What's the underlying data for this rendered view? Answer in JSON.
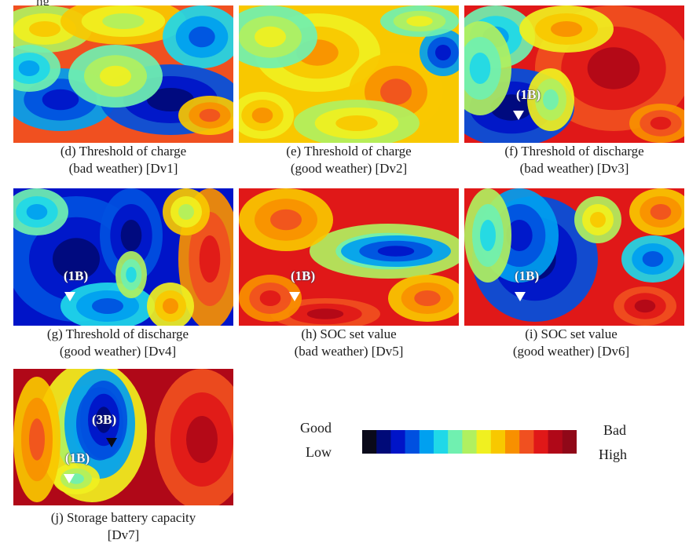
{
  "top_fragment": "ng",
  "panels": [
    {
      "id": "d",
      "caption_line1": "(d) Threshold of charge",
      "caption_line2": "(bad weather) [Dv1]",
      "markers": []
    },
    {
      "id": "e",
      "caption_line1": "(e) Threshold of charge",
      "caption_line2": "(good weather) [Dv2]",
      "markers": []
    },
    {
      "id": "f",
      "caption_line1": "(f) Threshold of discharge",
      "caption_line2": "(bad weather) [Dv3]",
      "markers": [
        "(1B)"
      ]
    },
    {
      "id": "g",
      "caption_line1": "(g) Threshold of discharge",
      "caption_line2": "(good weather) [Dv4]",
      "markers": [
        "(1B)"
      ]
    },
    {
      "id": "h",
      "caption_line1": "(h) SOC set value",
      "caption_line2": "(bad weather) [Dv5]",
      "markers": [
        "(1B)"
      ]
    },
    {
      "id": "i",
      "caption_line1": "(i)  SOC set value",
      "caption_line2": "(good weather) [Dv6]",
      "markers": [
        "(1B)"
      ]
    },
    {
      "id": "j",
      "caption_line1": "(j) Storage battery capacity",
      "caption_line2": "[Dv7]",
      "markers": [
        "(3B)",
        "(1B)"
      ]
    }
  ],
  "legend": {
    "left_top": "Good",
    "left_bottom": "Low",
    "right_top": "Bad",
    "right_bottom": "High",
    "colors": [
      "#0a0a1a",
      "#000a78",
      "#0014c8",
      "#0050e0",
      "#00a0f0",
      "#20d8e8",
      "#70f0b0",
      "#b0f060",
      "#f0f020",
      "#f8c800",
      "#f89000",
      "#f05020",
      "#e01818",
      "#b00818",
      "#900818"
    ]
  }
}
